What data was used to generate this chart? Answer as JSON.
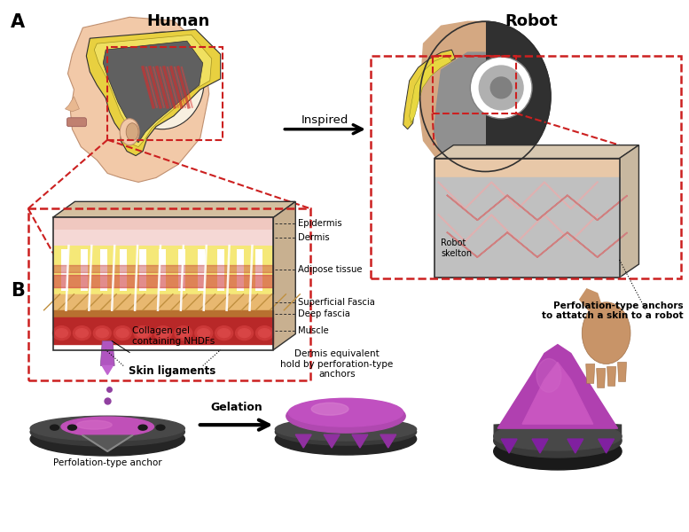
{
  "bg_color": "#ffffff",
  "label_A": "A",
  "label_B": "B",
  "human_title": "Human",
  "robot_title": "Robot",
  "inspired_text": "Inspired",
  "gelation_text": "Gelation",
  "skin_layers": [
    "Epidermis",
    "Dermis",
    "Adipose tissue",
    "Superficial Fascia",
    "Deep fascia",
    "Muscle"
  ],
  "skin_ligaments_text": "Skin ligaments",
  "perfolation_text": "Perfolation-type anchors\nto attatch a skin to a robot",
  "robot_skelton_text": "Robot\nskelton",
  "collagen_text": "Collagen gel\ncontaining NHDFs",
  "dermis_equiv_text": "Dermis equivalent\nhold by perforation-type\nanchors",
  "anchor_text": "Perfolation-type anchor",
  "colors": {
    "skin_light": "#f2c9a8",
    "skin_medium": "#e8b890",
    "epidermis_pink": "#f0c8c8",
    "dermis_pink": "#f5d8d8",
    "adipose_yellow": "#f5e878",
    "fascia_orange": "#e8a850",
    "muscle_red": "#c03030",
    "muscle_red2": "#d84040",
    "yellow_layer": "#e8d040",
    "skull_white": "#f8f0e0",
    "robot_dark": "#303030",
    "robot_mid": "#505050",
    "robot_gray": "#808080",
    "robot_light_gray": "#b0b0b0",
    "robot_skin": "#d4a882",
    "robot_inner_gray": "#909090",
    "anchor_dark": "#3a3a3a",
    "anchor_purple": "#b050b0",
    "anchor_magenta": "#c040b8",
    "anchor_magenta2": "#d060c0",
    "red_dashed": "#cc2020",
    "box_gray": "#c0c0c0",
    "box_gray2": "#b8b8b8",
    "skin_tan": "#d4a060"
  }
}
